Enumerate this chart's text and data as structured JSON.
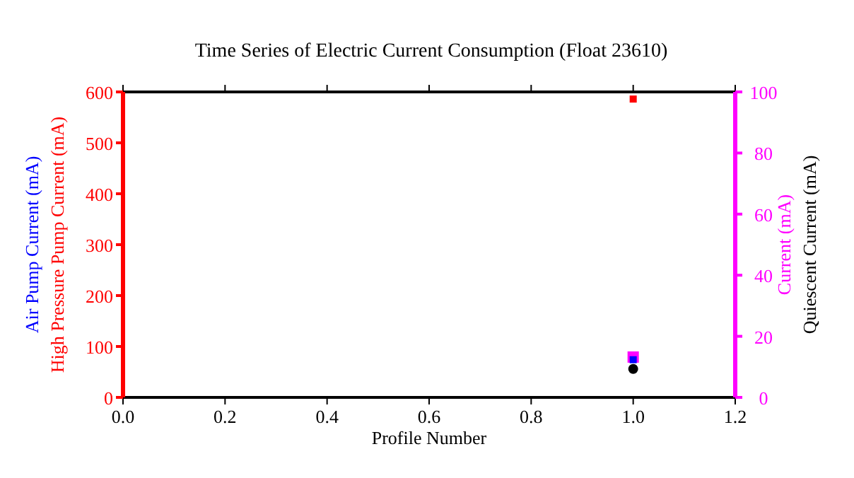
{
  "chart_data": {
    "type": "scatter",
    "title": "Time Series of Electric Current Consumption (Float 23610)",
    "xlabel": "Profile Number",
    "x": [
      1
    ],
    "xlim": [
      0,
      1.2
    ],
    "xticks": [
      {
        "value": 0,
        "label": "0.0"
      },
      {
        "value": 0.2,
        "label": "0.2"
      },
      {
        "value": 0.4,
        "label": "0.4"
      },
      {
        "value": 0.6,
        "label": "0.6"
      },
      {
        "value": 0.8,
        "label": "0.8"
      },
      {
        "value": 1,
        "label": "1.0"
      },
      {
        "value": 1.2,
        "label": "1.2"
      }
    ],
    "ylim": [
      0,
      600
    ],
    "yticks": [
      0,
      100,
      200,
      300,
      400,
      500,
      600
    ],
    "y2lim": [
      0,
      100
    ],
    "y2ticks": [
      0,
      20,
      40,
      60,
      80,
      100
    ],
    "grid": false,
    "series": [
      {
        "name": "High Pressure Pump Current (mA)",
        "color": "#ff0000",
        "values": [
          586
        ],
        "marker": "square"
      },
      {
        "name": "Current (mA)",
        "color": "#ff00ff",
        "values": [
          13.2
        ],
        "axis": "y2",
        "marker": "square"
      },
      {
        "name": "Air Pump Current (mA)",
        "color": "#0000ff",
        "values": [
          74
        ],
        "marker": "square"
      },
      {
        "name": "Quiescent Current (mA)",
        "color": "#000000",
        "values": [
          9.3
        ],
        "axis": "y2",
        "marker": "circle"
      }
    ]
  }
}
